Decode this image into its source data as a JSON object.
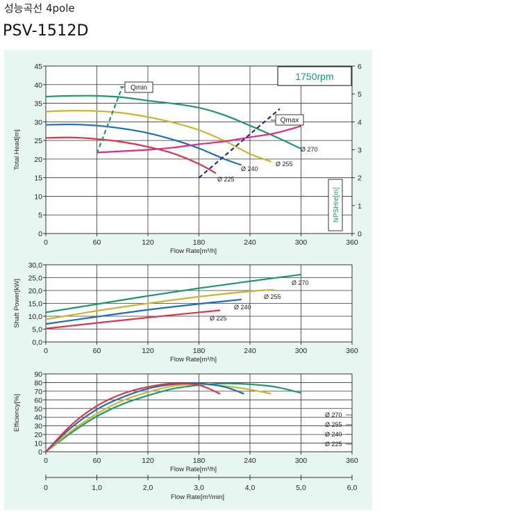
{
  "header": {
    "title": "성능곡선 4pole",
    "model": "PSV-1512D"
  },
  "colors": {
    "background": "#e8f6f2",
    "d270": "#1a9a6c",
    "d255": "#c9b62e",
    "d240": "#1a6fb5",
    "d225": "#e03448",
    "npsh": "#e0298a",
    "qline_min": "#1a9a6c",
    "qline_max": "#2a2a8a"
  },
  "chart_data": [
    {
      "id": "head",
      "type": "line",
      "xlabel": "Flow Rate[m³/h]",
      "ylabel": "Total Head[m]",
      "y2label": "NPSHre[m]",
      "xlim": [
        0,
        360
      ],
      "ylim": [
        0,
        45
      ],
      "y2lim": [
        0,
        6
      ],
      "xticks": [
        "0",
        "60",
        "120",
        "180",
        "240",
        "300",
        "360"
      ],
      "yticks": [
        "0",
        "5",
        "10",
        "15",
        "20",
        "25",
        "30",
        "35",
        "40",
        "45"
      ],
      "y2ticks": [
        "0",
        "1",
        "2",
        "3",
        "4",
        "5",
        "6"
      ],
      "annotations": {
        "rpm": "1750rpm",
        "qmin": "Qmin",
        "qmax": "Qmax"
      },
      "series": [
        {
          "name": "Ø 270",
          "color": "#1a9a6c",
          "x": [
            0,
            30,
            60,
            90,
            120,
            150,
            180,
            210,
            240,
            270,
            300
          ],
          "y": [
            36.8,
            37.0,
            37.0,
            36.6,
            35.7,
            34.9,
            33.8,
            31.8,
            29.0,
            26.0,
            22.8
          ]
        },
        {
          "name": "Ø 255",
          "color": "#c9b62e",
          "x": [
            0,
            30,
            60,
            90,
            120,
            150,
            180,
            210,
            240,
            265
          ],
          "y": [
            32.8,
            33.0,
            32.9,
            32.4,
            31.3,
            29.8,
            27.8,
            24.9,
            21.4,
            19.3
          ]
        },
        {
          "name": "Ø 240",
          "color": "#1a6fb5",
          "x": [
            0,
            30,
            60,
            90,
            120,
            150,
            180,
            210,
            230
          ],
          "y": [
            29.2,
            29.3,
            29.0,
            28.2,
            27.0,
            25.2,
            22.9,
            20.0,
            18.4
          ]
        },
        {
          "name": "Ø 225",
          "color": "#e03448",
          "x": [
            0,
            30,
            60,
            90,
            120,
            150,
            180,
            200
          ],
          "y": [
            25.7,
            25.8,
            25.4,
            24.6,
            23.3,
            21.5,
            18.7,
            16.2
          ]
        },
        {
          "name": "NPSHre",
          "color": "#e0298a",
          "axis": "y2",
          "x": [
            60,
            90,
            120,
            150,
            180,
            210,
            240,
            270,
            300
          ],
          "y": [
            2.9,
            2.95,
            3.0,
            3.08,
            3.2,
            3.3,
            3.45,
            3.6,
            3.85
          ]
        }
      ],
      "qmin": {
        "x": [
          60,
          90
        ],
        "y": [
          21.5,
          39.5
        ]
      },
      "qmax": {
        "x": [
          180,
          275
        ],
        "y": [
          15,
          33.5
        ]
      }
    },
    {
      "id": "power",
      "type": "line",
      "xlabel": "Flow Rate[m³/h]",
      "ylabel": "Shaft Power[kW]",
      "xlim": [
        0,
        360
      ],
      "ylim": [
        0,
        30
      ],
      "xticks": [
        "0",
        "60",
        "120",
        "180",
        "240",
        "300",
        "360"
      ],
      "yticks": [
        "0,0",
        "5,0",
        "10,0",
        "15,0",
        "20,0",
        "25,0",
        "30,0"
      ],
      "series": [
        {
          "name": "Ø 270",
          "color": "#1a9a6c",
          "x": [
            0,
            60,
            120,
            180,
            240,
            300
          ],
          "y": [
            11.5,
            14.7,
            17.9,
            20.9,
            23.6,
            26.2
          ]
        },
        {
          "name": "Ø 255",
          "color": "#c9b62e",
          "x": [
            0,
            60,
            120,
            180,
            240,
            268
          ],
          "y": [
            8.8,
            12.1,
            15.0,
            17.6,
            19.7,
            20.3
          ]
        },
        {
          "name": "Ø 240",
          "color": "#1a6fb5",
          "x": [
            0,
            60,
            120,
            180,
            230
          ],
          "y": [
            7.0,
            9.8,
            12.5,
            14.8,
            16.5
          ]
        },
        {
          "name": "Ø 225",
          "color": "#e03448",
          "x": [
            0,
            60,
            120,
            180,
            205
          ],
          "y": [
            5.2,
            7.4,
            9.5,
            11.5,
            12.3
          ]
        }
      ]
    },
    {
      "id": "efficiency",
      "type": "line",
      "xlabel": "Flow Rate[m³/h]",
      "x2label": "Flow Rate[m³/min]",
      "ylabel": "Efficiency[%]",
      "xlim": [
        0,
        360
      ],
      "ylim": [
        0,
        90
      ],
      "x2lim": [
        0,
        6
      ],
      "xticks": [
        "0",
        "60",
        "120",
        "180",
        "240",
        "300",
        "360"
      ],
      "x2ticks": [
        "0",
        "1,0",
        "2,0",
        "3,0",
        "4,0",
        "5,0",
        "6,0"
      ],
      "yticks": [
        "0",
        "10",
        "20",
        "30",
        "40",
        "50",
        "60",
        "70",
        "80",
        "90"
      ],
      "legend": [
        "Ø 270",
        "Ø 255",
        "Ø 240",
        "Ø 225"
      ],
      "series": [
        {
          "name": "Ø 270",
          "color": "#1a9a6c",
          "x": [
            0,
            30,
            60,
            90,
            120,
            150,
            180,
            210,
            240,
            270,
            300
          ],
          "y": [
            0,
            22,
            41,
            55,
            65,
            73,
            77,
            79,
            78,
            75,
            68
          ]
        },
        {
          "name": "Ø 255",
          "color": "#c9b62e",
          "x": [
            0,
            30,
            60,
            90,
            120,
            150,
            180,
            210,
            240,
            265
          ],
          "y": [
            0,
            24,
            44,
            59,
            69,
            76,
            78,
            76,
            72,
            67
          ]
        },
        {
          "name": "Ø 240",
          "color": "#1a6fb5",
          "x": [
            0,
            30,
            60,
            90,
            120,
            150,
            180,
            210,
            233
          ],
          "y": [
            0,
            28,
            49,
            63,
            73,
            78,
            79,
            75,
            67
          ]
        },
        {
          "name": "Ø 225",
          "color": "#e03448",
          "x": [
            0,
            30,
            60,
            90,
            120,
            150,
            180,
            205
          ],
          "y": [
            0,
            31,
            53,
            67,
            75,
            79,
            77,
            67
          ]
        }
      ]
    }
  ]
}
